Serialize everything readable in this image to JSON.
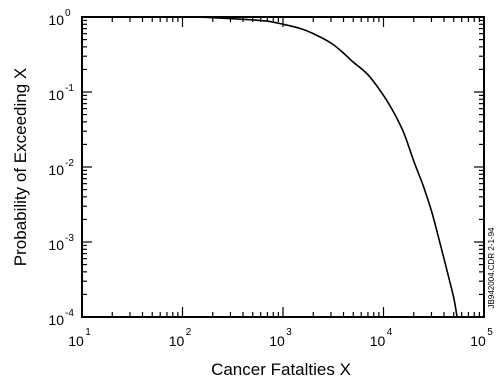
{
  "chart_data": {
    "type": "line",
    "title": "",
    "xlabel": "Cancer Fatalties  X",
    "ylabel": "Probability of Exceeding  X",
    "x_scale": "log",
    "y_scale": "log",
    "xlim": [
      10,
      100000
    ],
    "ylim": [
      0.0001,
      1
    ],
    "grid": false,
    "x_ticks": [
      {
        "base": "10",
        "exp": "1",
        "value": 10
      },
      {
        "base": "10",
        "exp": "2",
        "value": 100
      },
      {
        "base": "10",
        "exp": "3",
        "value": 1000
      },
      {
        "base": "10",
        "exp": "4",
        "value": 10000
      },
      {
        "base": "10",
        "exp": "5",
        "value": 100000
      }
    ],
    "y_ticks": [
      {
        "base": "10",
        "exp": "0",
        "value": 1
      },
      {
        "base": "10",
        "exp": "-1",
        "value": 0.1
      },
      {
        "base": "10",
        "exp": "-2",
        "value": 0.01
      },
      {
        "base": "10",
        "exp": "-3",
        "value": 0.001
      },
      {
        "base": "10",
        "exp": "-4",
        "value": 0.0001
      }
    ],
    "series": [
      {
        "color": "#000000",
        "x": [
          10,
          100,
          200,
          400,
          700,
          1000,
          1500,
          2000,
          3000,
          4000,
          5000,
          7000,
          10000,
          13000,
          16000,
          20000,
          25000,
          30000,
          35000,
          40000,
          45000,
          50000,
          54000
        ],
        "y": [
          1.0,
          1.0,
          0.98,
          0.93,
          0.88,
          0.8,
          0.7,
          0.6,
          0.45,
          0.33,
          0.25,
          0.17,
          0.09,
          0.05,
          0.028,
          0.012,
          0.0055,
          0.0026,
          0.0012,
          0.0006,
          0.00032,
          0.00018,
          0.0001
        ]
      }
    ]
  },
  "stamp": "JB942004.CDR  2-1-94"
}
